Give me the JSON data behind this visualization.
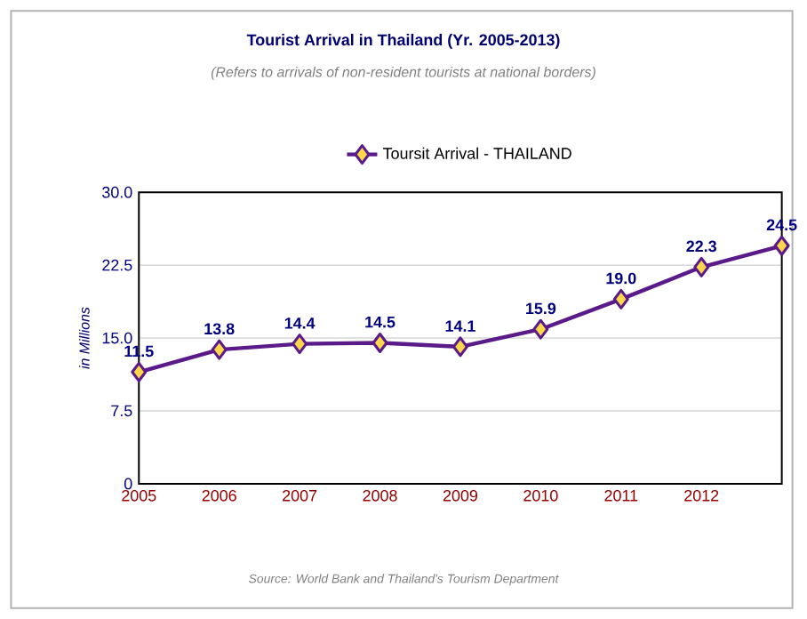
{
  "chart_data": {
    "type": "line",
    "title": "Tourist Arrival in Thailand (Yr. 2005-2013)",
    "subtitle": "(Refers to arrivals of non-resident tourists at national borders)",
    "ylabel": "in Millions",
    "categories": [
      "2005",
      "2006",
      "2007",
      "2008",
      "2009",
      "2010",
      "2011",
      "2012",
      null
    ],
    "series": [
      {
        "name": "Toursit Arrival - THAILAND",
        "color": "#5a1a8a",
        "values": [
          11.5,
          13.8,
          14.4,
          14.5,
          14.1,
          15.9,
          19.0,
          22.3,
          24.5
        ],
        "value_labels": [
          "11.5",
          "13.8",
          "14.4",
          "14.5",
          "14.1",
          "15.9",
          "19.0",
          "22.3",
          "24.5"
        ]
      }
    ],
    "ylim": [
      0,
      30
    ],
    "yticks": [
      0,
      7.5,
      {
        "value": 15,
        "label": "15.0"
      },
      22.5,
      {
        "value": 30,
        "label": "30.0"
      }
    ],
    "grid": "y",
    "legend": "top",
    "marker": "diamond",
    "line_style": "solid",
    "annotations": [
      "Source: World Bank and Thailand's Tourism Department"
    ]
  }
}
